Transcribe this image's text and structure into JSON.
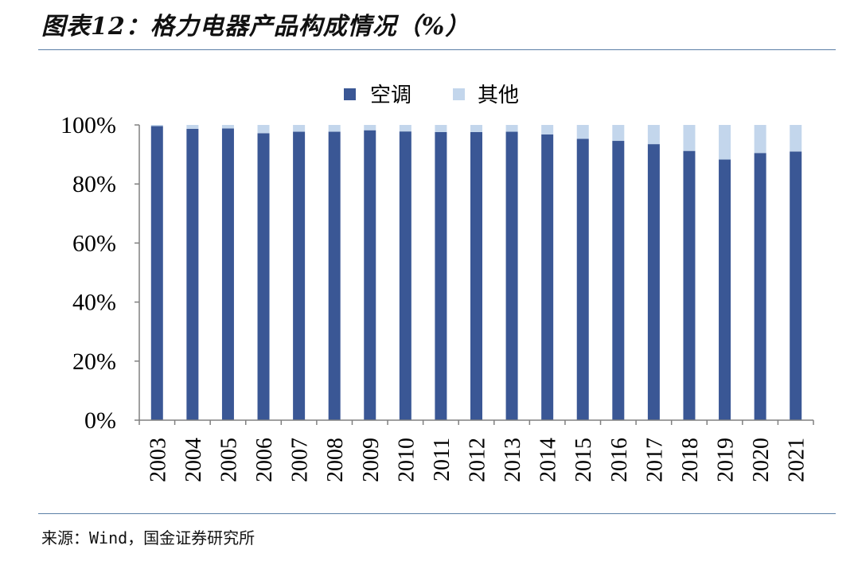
{
  "header": {
    "title": "图表12：格力电器产品构成情况（%）"
  },
  "footer": {
    "source": "来源：Wind，国金证券研究所"
  },
  "colors": {
    "aircon": "#3a5795",
    "other": "#c3d6ec",
    "axis": "#808080",
    "rule": "#5b7fa6"
  },
  "chart_data": {
    "type": "bar",
    "stacked": true,
    "categories": [
      "2003",
      "2004",
      "2005",
      "2006",
      "2007",
      "2008",
      "2009",
      "2010",
      "2011",
      "2012",
      "2013",
      "2014",
      "2015",
      "2016",
      "2017",
      "2018",
      "2019",
      "2020",
      "2021"
    ],
    "series": [
      {
        "name": "空调",
        "values": [
          99.6,
          98.7,
          98.8,
          97.2,
          97.7,
          97.7,
          98.2,
          97.8,
          97.6,
          97.6,
          97.7,
          96.8,
          95.3,
          94.6,
          93.5,
          91.2,
          88.3,
          90.5,
          91.0
        ]
      },
      {
        "name": "其他",
        "values": [
          0.4,
          1.3,
          1.2,
          2.8,
          2.3,
          2.3,
          1.8,
          2.2,
          2.4,
          2.4,
          2.3,
          3.2,
          4.7,
          5.4,
          6.5,
          8.8,
          11.7,
          9.5,
          9.0
        ]
      }
    ],
    "ylim": [
      0,
      100
    ],
    "yticks": [
      "0%",
      "20%",
      "40%",
      "60%",
      "80%",
      "100%"
    ],
    "legend_position": "top-center",
    "grid": false
  }
}
